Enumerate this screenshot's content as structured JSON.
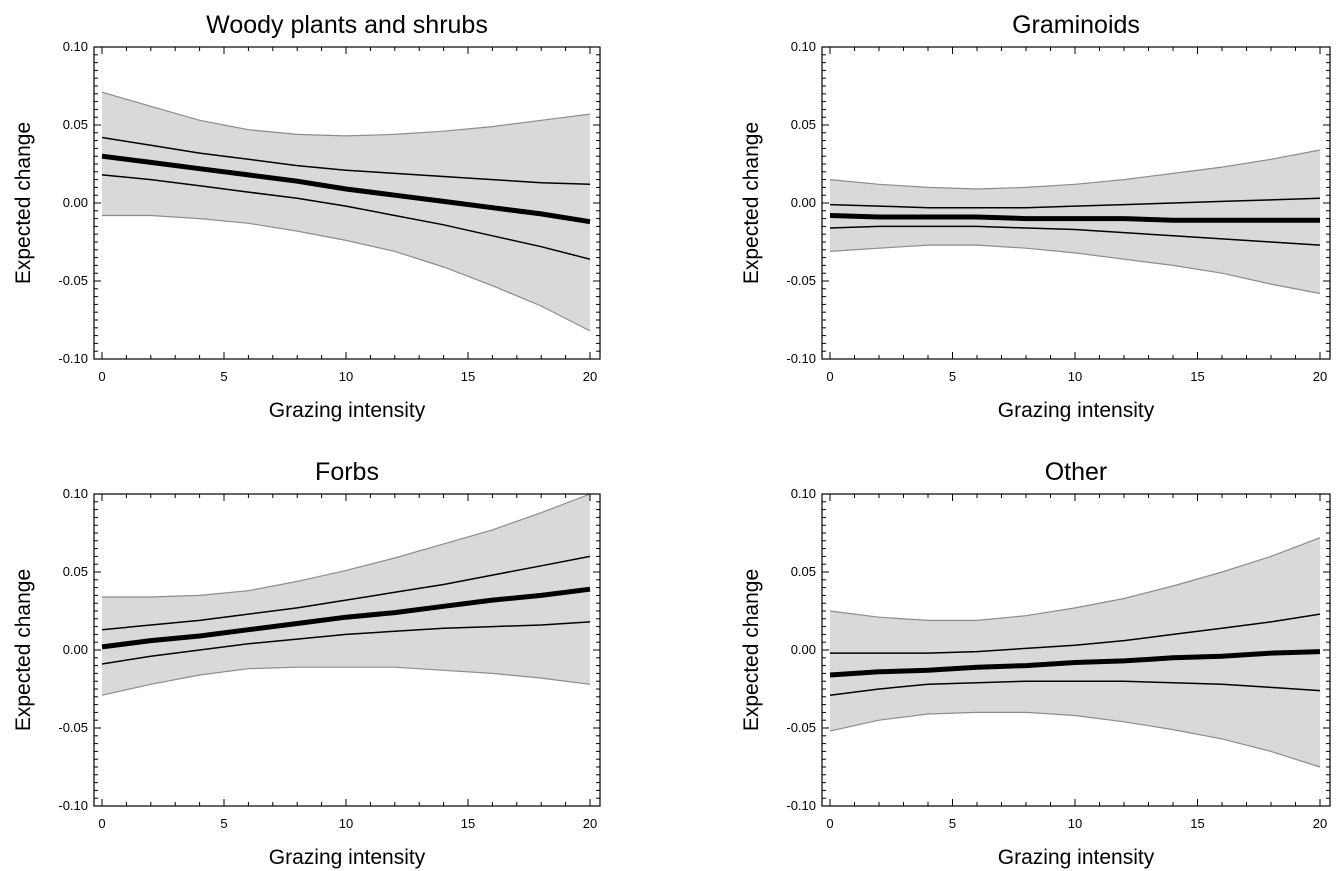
{
  "chart_data": [
    {
      "type": "line",
      "title": "Woody plants and shrubs",
      "xlabel": "Grazing intensity",
      "ylabel": "Expected change",
      "xlim": [
        0,
        20
      ],
      "ylim": [
        -0.1,
        0.1
      ],
      "xticks": [
        "0",
        "5",
        "10",
        "15",
        "20"
      ],
      "yticks": [
        "-0.10",
        "-0.05",
        "0.00",
        "0.05",
        "0.10"
      ],
      "grid": false,
      "x": [
        0,
        2,
        4,
        6,
        8,
        10,
        12,
        14,
        16,
        18,
        20
      ],
      "mean": [
        0.03,
        0.026,
        0.022,
        0.018,
        0.014,
        0.009,
        0.005,
        0.001,
        -0.003,
        -0.007,
        -0.012
      ],
      "inner_upper": [
        0.042,
        0.037,
        0.032,
        0.028,
        0.024,
        0.021,
        0.019,
        0.017,
        0.015,
        0.013,
        0.012
      ],
      "inner_lower": [
        0.018,
        0.015,
        0.011,
        0.007,
        0.003,
        -0.002,
        -0.008,
        -0.014,
        -0.021,
        -0.028,
        -0.036
      ],
      "band_upper": [
        0.071,
        0.062,
        0.053,
        0.047,
        0.044,
        0.043,
        0.044,
        0.046,
        0.049,
        0.053,
        0.057
      ],
      "band_lower": [
        -0.008,
        -0.008,
        -0.01,
        -0.013,
        -0.018,
        -0.024,
        -0.031,
        -0.041,
        -0.053,
        -0.066,
        -0.082
      ]
    },
    {
      "type": "line",
      "title": "Graminoids",
      "xlabel": "Grazing intensity",
      "ylabel": "Expected change",
      "xlim": [
        0,
        20
      ],
      "ylim": [
        -0.1,
        0.1
      ],
      "xticks": [
        "0",
        "5",
        "10",
        "15",
        "20"
      ],
      "yticks": [
        "-0.10",
        "-0.05",
        "0.00",
        "0.05",
        "0.10"
      ],
      "grid": false,
      "x": [
        0,
        2,
        4,
        6,
        8,
        10,
        12,
        14,
        16,
        18,
        20
      ],
      "mean": [
        -0.008,
        -0.009,
        -0.009,
        -0.009,
        -0.01,
        -0.01,
        -0.01,
        -0.011,
        -0.011,
        -0.011,
        -0.011
      ],
      "inner_upper": [
        -0.001,
        -0.002,
        -0.003,
        -0.003,
        -0.003,
        -0.002,
        -0.001,
        0.0,
        0.001,
        0.002,
        0.003
      ],
      "inner_lower": [
        -0.016,
        -0.015,
        -0.015,
        -0.015,
        -0.016,
        -0.017,
        -0.019,
        -0.021,
        -0.023,
        -0.025,
        -0.027
      ],
      "band_upper": [
        0.015,
        0.012,
        0.01,
        0.009,
        0.01,
        0.012,
        0.015,
        0.019,
        0.023,
        0.028,
        0.034
      ],
      "band_lower": [
        -0.031,
        -0.029,
        -0.027,
        -0.027,
        -0.029,
        -0.032,
        -0.036,
        -0.04,
        -0.045,
        -0.052,
        -0.058
      ]
    },
    {
      "type": "line",
      "title": "Forbs",
      "xlabel": "Grazing intensity",
      "ylabel": "Expected change",
      "xlim": [
        0,
        20
      ],
      "ylim": [
        -0.1,
        0.1
      ],
      "xticks": [
        "0",
        "5",
        "10",
        "15",
        "20"
      ],
      "yticks": [
        "-0.10",
        "-0.05",
        "0.00",
        "0.05",
        "0.10"
      ],
      "grid": false,
      "x": [
        0,
        2,
        4,
        6,
        8,
        10,
        12,
        14,
        16,
        18,
        20
      ],
      "mean": [
        0.002,
        0.006,
        0.009,
        0.013,
        0.017,
        0.021,
        0.024,
        0.028,
        0.032,
        0.035,
        0.039
      ],
      "inner_upper": [
        0.013,
        0.016,
        0.019,
        0.023,
        0.027,
        0.032,
        0.037,
        0.042,
        0.048,
        0.054,
        0.06
      ],
      "inner_lower": [
        -0.009,
        -0.004,
        0.0,
        0.004,
        0.007,
        0.01,
        0.012,
        0.014,
        0.015,
        0.016,
        0.018
      ],
      "band_upper": [
        0.034,
        0.034,
        0.035,
        0.038,
        0.044,
        0.051,
        0.059,
        0.068,
        0.077,
        0.088,
        0.1
      ],
      "band_lower": [
        -0.029,
        -0.022,
        -0.016,
        -0.012,
        -0.011,
        -0.011,
        -0.011,
        -0.013,
        -0.015,
        -0.018,
        -0.022
      ]
    },
    {
      "type": "line",
      "title": "Other",
      "xlabel": "Grazing intensity",
      "ylabel": "Expected change",
      "xlim": [
        0,
        20
      ],
      "ylim": [
        -0.1,
        0.1
      ],
      "xticks": [
        "0",
        "5",
        "10",
        "15",
        "20"
      ],
      "yticks": [
        "-0.10",
        "-0.05",
        "0.00",
        "0.05",
        "0.10"
      ],
      "grid": false,
      "x": [
        0,
        2,
        4,
        6,
        8,
        10,
        12,
        14,
        16,
        18,
        20
      ],
      "mean": [
        -0.016,
        -0.014,
        -0.013,
        -0.011,
        -0.01,
        -0.008,
        -0.007,
        -0.005,
        -0.004,
        -0.002,
        -0.001
      ],
      "inner_upper": [
        -0.002,
        -0.002,
        -0.002,
        -0.001,
        0.001,
        0.003,
        0.006,
        0.01,
        0.014,
        0.018,
        0.023
      ],
      "inner_lower": [
        -0.029,
        -0.025,
        -0.022,
        -0.021,
        -0.02,
        -0.02,
        -0.02,
        -0.021,
        -0.022,
        -0.024,
        -0.026
      ],
      "band_upper": [
        0.025,
        0.021,
        0.019,
        0.019,
        0.022,
        0.027,
        0.033,
        0.041,
        0.05,
        0.06,
        0.072
      ],
      "band_lower": [
        -0.052,
        -0.045,
        -0.041,
        -0.04,
        -0.04,
        -0.042,
        -0.046,
        -0.051,
        -0.057,
        -0.065,
        -0.075
      ]
    }
  ],
  "colors": {
    "band_fill": "#d9d9d9",
    "band_edge": "#8c8c8c",
    "mean_line": "#000000",
    "inner_line": "#000000",
    "frame": "#000000"
  }
}
